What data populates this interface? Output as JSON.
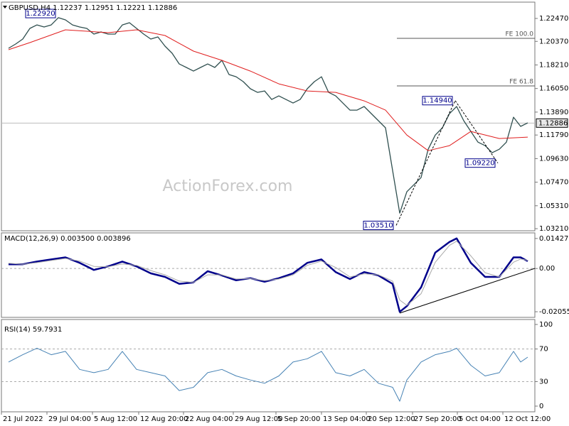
{
  "chart_data": [
    {
      "type": "line",
      "title": "GBPUSD,H4 1.12237 1.12951 1.12221 1.12886",
      "watermark": "ActionForex.com",
      "xlim": [
        -1,
        74
      ],
      "ylim": [
        1.0302,
        1.239
      ],
      "yticks": [
        {
          "value": 1.2247,
          "label": "1.22470"
        },
        {
          "value": 1.2037,
          "label": "1.20370"
        },
        {
          "value": 1.1821,
          "label": "1.18210"
        },
        {
          "value": 1.1605,
          "label": "1.16050"
        },
        {
          "value": 1.1389,
          "label": "1.13890"
        },
        {
          "value": 1.1179,
          "label": "1.11790"
        },
        {
          "value": 1.0963,
          "label": "1.09630"
        },
        {
          "value": 1.0747,
          "label": "1.07470"
        },
        {
          "value": 1.0531,
          "label": "1.05310"
        },
        {
          "value": 1.0321,
          "label": "1.03210"
        }
      ],
      "current_price": {
        "value": 1.12886,
        "label": "1.12886"
      },
      "series": [
        {
          "color": "#2f4f4f",
          "values": [
            1.1974,
            1.2013,
            1.2058,
            1.2156,
            1.2188,
            1.2169,
            1.2188,
            1.2254,
            1.2234,
            1.2188,
            1.2169,
            1.2156,
            1.2104,
            1.2123,
            1.2104,
            1.2104,
            1.2188,
            1.2208,
            1.2156,
            1.2104,
            1.2058,
            1.2078,
            1.1993,
            1.1928,
            1.183,
            1.1798,
            1.1765,
            1.1798,
            1.183,
            1.1798,
            1.1863,
            1.1733,
            1.1713,
            1.1668,
            1.1603,
            1.157,
            1.1583,
            1.1505,
            1.1537,
            1.1505,
            1.1472,
            1.1505,
            1.1603,
            1.1668,
            1.1713,
            1.157,
            1.1537,
            1.1472,
            1.1407,
            1.1407,
            1.144,
            1.1375,
            1.131,
            1.1245,
            1.0854,
            1.0463,
            1.0659,
            1.0724,
            1.0789,
            1.1049,
            1.1179,
            1.1245,
            1.1375,
            1.144,
            1.131,
            1.1212,
            1.1114,
            1.1082,
            1.1017,
            1.1049,
            1.1114,
            1.1342,
            1.1258,
            1.129
          ]
        },
        {
          "color": "#e01e1e",
          "x": [
            0,
            3,
            8,
            14,
            18,
            22,
            26,
            30,
            34,
            38,
            42,
            46,
            50,
            53,
            56,
            59,
            62,
            65,
            69,
            73
          ],
          "values": [
            1.1961,
            1.2026,
            1.2143,
            1.2117,
            1.2143,
            1.2091,
            1.1948,
            1.1863,
            1.1765,
            1.1648,
            1.1583,
            1.157,
            1.1492,
            1.1407,
            1.1179,
            1.1036,
            1.1082,
            1.1212,
            1.1147,
            1.116
          ]
        }
      ],
      "annotations": [
        {
          "label": "1.22920",
          "value": 1.2292,
          "x": 7
        },
        {
          "label": "1.14940",
          "value": 1.1494,
          "x": 62.8
        },
        {
          "label": "1.09220",
          "value": 1.0922,
          "x": 68.8
        },
        {
          "label": "1.03510",
          "value": 1.0351,
          "x": 54.5
        }
      ],
      "levels": [
        {
          "label": "FE 100.0",
          "value": 1.2065
        },
        {
          "label": "FE 61.8",
          "value": 1.1629
        }
      ]
    },
    {
      "type": "line",
      "title": "MACD(12,26,9) 0.003500 0.003896",
      "xlim": [
        -1,
        74
      ],
      "ylim": [
        -0.0229,
        0.0166
      ],
      "yticks": [
        {
          "value": 0.014278,
          "label": "0.014278"
        },
        {
          "value": 0,
          "label": "0.00"
        },
        {
          "value": -0.020556,
          "label": "-0.020556"
        }
      ],
      "levels": [
        0
      ],
      "x": [
        0,
        2,
        4,
        6,
        8,
        10,
        12,
        14,
        16,
        18,
        20,
        22,
        24,
        26,
        28,
        30,
        32,
        34,
        36,
        38,
        40,
        42,
        44,
        46,
        48,
        50,
        52,
        54,
        55,
        56,
        58,
        60,
        62,
        63,
        65,
        67,
        69,
        71,
        72,
        73
      ],
      "series": [
        {
          "color": "#00008b",
          "values": [
            0.002,
            0.002,
            0.0033,
            0.0043,
            0.0053,
            0.0027,
            -0.0007,
            0.001,
            0.0033,
            0.001,
            -0.0023,
            -0.004,
            -0.0073,
            -0.0066,
            -0.0013,
            -0.0033,
            -0.0056,
            -0.0046,
            -0.0063,
            -0.0046,
            -0.0023,
            0.0027,
            0.0043,
            -0.0017,
            -0.005,
            -0.0017,
            -0.0033,
            -0.0073,
            -0.0206,
            -0.0179,
            -0.009,
            0.0076,
            0.0126,
            0.0143,
            0.0027,
            -0.004,
            -0.004,
            0.0053,
            0.0053,
            0.0035
          ]
        },
        {
          "color": "#a9a9a9",
          "values": [
            0.0025,
            0.002,
            0.0028,
            0.0038,
            0.0048,
            0.0035,
            0.001,
            0.0008,
            0.0022,
            0.0015,
            -0.001,
            -0.003,
            -0.006,
            -0.0066,
            -0.003,
            -0.003,
            -0.005,
            -0.0048,
            -0.0058,
            -0.005,
            -0.003,
            0.0015,
            0.0035,
            0.0005,
            -0.004,
            -0.0025,
            -0.003,
            -0.006,
            -0.015,
            -0.0175,
            -0.012,
            0.003,
            0.011,
            0.013,
            0.006,
            -0.002,
            -0.004,
            0.003,
            0.0045,
            0.0039
          ]
        }
      ]
    },
    {
      "type": "line",
      "title": "RSI(14) 59.7931",
      "xlim": [
        -1,
        74
      ],
      "ylim": [
        0,
        100
      ],
      "yticks": [
        100,
        70,
        30,
        0
      ],
      "levels": [
        70,
        30
      ],
      "x": [
        0,
        2,
        4,
        6,
        8,
        10,
        12,
        14,
        16,
        18,
        20,
        22,
        24,
        26,
        28,
        30,
        32,
        34,
        36,
        38,
        40,
        42,
        44,
        46,
        48,
        50,
        52,
        54,
        55,
        56,
        58,
        60,
        62,
        63,
        65,
        67,
        69,
        71,
        72,
        73
      ],
      "series": [
        {
          "color": "#4682b4",
          "values": [
            54,
            63,
            71,
            63,
            67,
            45,
            41,
            45,
            67,
            45,
            41,
            37,
            19,
            23,
            41,
            45,
            37,
            32,
            28,
            37,
            54,
            58,
            67,
            41,
            37,
            45,
            28,
            23,
            6,
            32,
            54,
            63,
            67,
            71,
            50,
            37,
            41,
            67,
            54,
            60
          ]
        }
      ],
      "xticks": [
        {
          "value": -1,
          "label": "21 Jul 2022"
        },
        {
          "value": 5.4,
          "label": "29 Jul 04:00"
        },
        {
          "value": 11.8,
          "label": "5 Aug 12:00"
        },
        {
          "value": 18.3,
          "label": "12 Aug 20:00"
        },
        {
          "value": 24.6,
          "label": "22 Aug 04:00"
        },
        {
          "value": 31.6,
          "label": "29 Aug 12:00"
        },
        {
          "value": 37.6,
          "label": "5 Sep 20:00"
        },
        {
          "value": 44,
          "label": "13 Sep 04:00"
        },
        {
          "value": 50.3,
          "label": "20 Sep 12:00"
        },
        {
          "value": 56.8,
          "label": "27 Sep 20:00"
        },
        {
          "value": 63.1,
          "label": "5 Oct 04:00"
        },
        {
          "value": 69.5,
          "label": "12 Oct 12:00"
        }
      ]
    }
  ]
}
